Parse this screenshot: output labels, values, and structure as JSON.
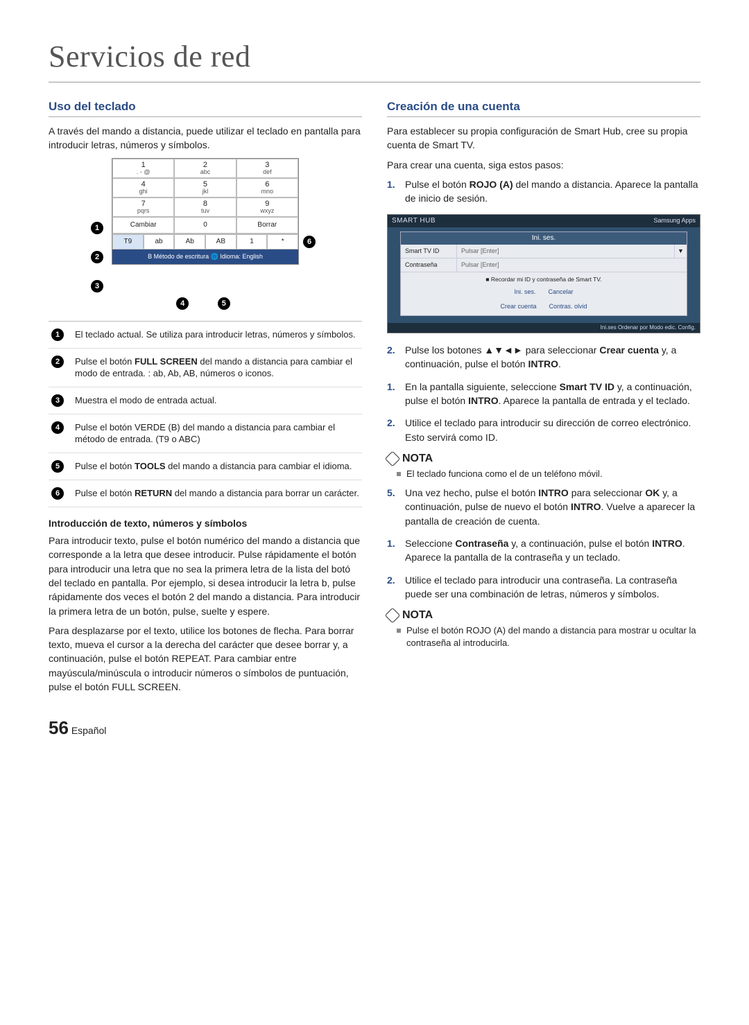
{
  "title": "Servicios de red",
  "left": {
    "h": "Uso del teclado",
    "intro": "A través del mando a distancia, puede utilizar el teclado en pantalla para introducir letras, números y símbolos.",
    "keypad": {
      "cells": [
        {
          "n": "1",
          "l": ". - @"
        },
        {
          "n": "2",
          "l": "abc"
        },
        {
          "n": "3",
          "l": "def"
        },
        {
          "n": "4",
          "l": "ghi"
        },
        {
          "n": "5",
          "l": "jkl"
        },
        {
          "n": "6",
          "l": "mno"
        },
        {
          "n": "7",
          "l": "pqrs"
        },
        {
          "n": "8",
          "l": "tuv"
        },
        {
          "n": "9",
          "l": "wxyz"
        }
      ],
      "row": [
        "Cambiar",
        "0",
        "Borrar"
      ],
      "modes": [
        "T9",
        "ab",
        "Ab",
        "AB",
        "1",
        "*"
      ],
      "info": "B Método de escritura  🌐 Idioma: English"
    },
    "legend": [
      "El teclado actual. Se utiliza para introducir letras, números y símbolos.",
      "Pulse el botón FULL SCREEN del mando a distancia para cambiar el modo de entrada. : ab, Ab, AB, números o iconos.",
      "Muestra el modo de entrada actual.",
      "Pulse el botón VERDE (B) del mando a distancia para cambiar el método de entrada. (T9 o ABC)",
      "Pulse el botón TOOLS del mando a distancia para cambiar el idioma.",
      "Pulse el botón RETURN del mando a distancia para borrar un carácter."
    ],
    "sub": "Introducción de texto, números y símbolos",
    "p1": "Para introducir texto, pulse el botón numérico del mando a distancia que corresponde a la letra que desee introducir. Pulse rápidamente el botón para introducir una letra que no sea la primera letra de la lista del botó del teclado en pantalla. Por ejemplo, si desea introducir la letra b, pulse rápidamente dos veces el botón 2 del mando a distancia. Para introducir la primera letra de un botón, pulse, suelte y espere.",
    "p2": "Para desplazarse por el texto, utilice los botones de flecha. Para borrar texto, mueva el cursor a la derecha del carácter que desee borrar y, a continuación, pulse el botón REPEAT. Para cambiar entre mayúscula/minúscula o introducir números o símbolos de puntuación, pulse el botón FULL SCREEN."
  },
  "right": {
    "h": "Creación de una cuenta",
    "intro": "Para establecer su propia configuración de Smart Hub, cree su propia cuenta de Smart TV.",
    "intro2": "Para crear una cuenta, siga estos pasos:",
    "hub": {
      "brand": "SMART HUB",
      "apps": "Samsung Apps",
      "title": "Ini. ses.",
      "id": "Smart TV ID",
      "ph": "Pulsar [Enter]",
      "pw": "Contraseña",
      "chk": "Recordar mi ID y contraseña de Smart TV.",
      "b1": "Ini. ses.",
      "b2": "Cancelar",
      "b3": "Crear cuenta",
      "b4": "Contras. olvid",
      "foot": "Ini.ses   Ordenar por   Modo edic.   Config."
    },
    "steps": [
      "Pulse el botón ROJO (A) del mando a distancia. Aparece la pantalla de inicio de sesión.",
      "Pulse los botones ▲▼◄► para seleccionar Crear cuenta y, a continuación, pulse el botón INTRO.",
      "En la pantalla siguiente, seleccione Smart TV ID y, a continuación, pulse el botón INTRO. Aparece la pantalla de entrada y el teclado.",
      "Utilice el teclado para introducir su dirección de correo electrónico. Esto servirá como ID.",
      "Una vez hecho, pulse el botón INTRO para seleccionar OK y, a continuación, pulse de nuevo el botón INTRO. Vuelve a aparecer la pantalla de creación de cuenta.",
      "Seleccione Contraseña y, a continuación, pulse el botón INTRO. Aparece la pantalla de la contraseña y un teclado.",
      "Utilice el teclado para introducir una contraseña. La contraseña puede ser una combinación de letras, números y símbolos."
    ],
    "note1_h": "NOTA",
    "note1": "El teclado funciona como el de un teléfono móvil.",
    "note2_h": "NOTA",
    "note2": "Pulse el botón ROJO (A) del mando a distancia para mostrar u ocultar la contraseña al introducirla."
  },
  "page": {
    "n": "56",
    "lang": "Español"
  }
}
